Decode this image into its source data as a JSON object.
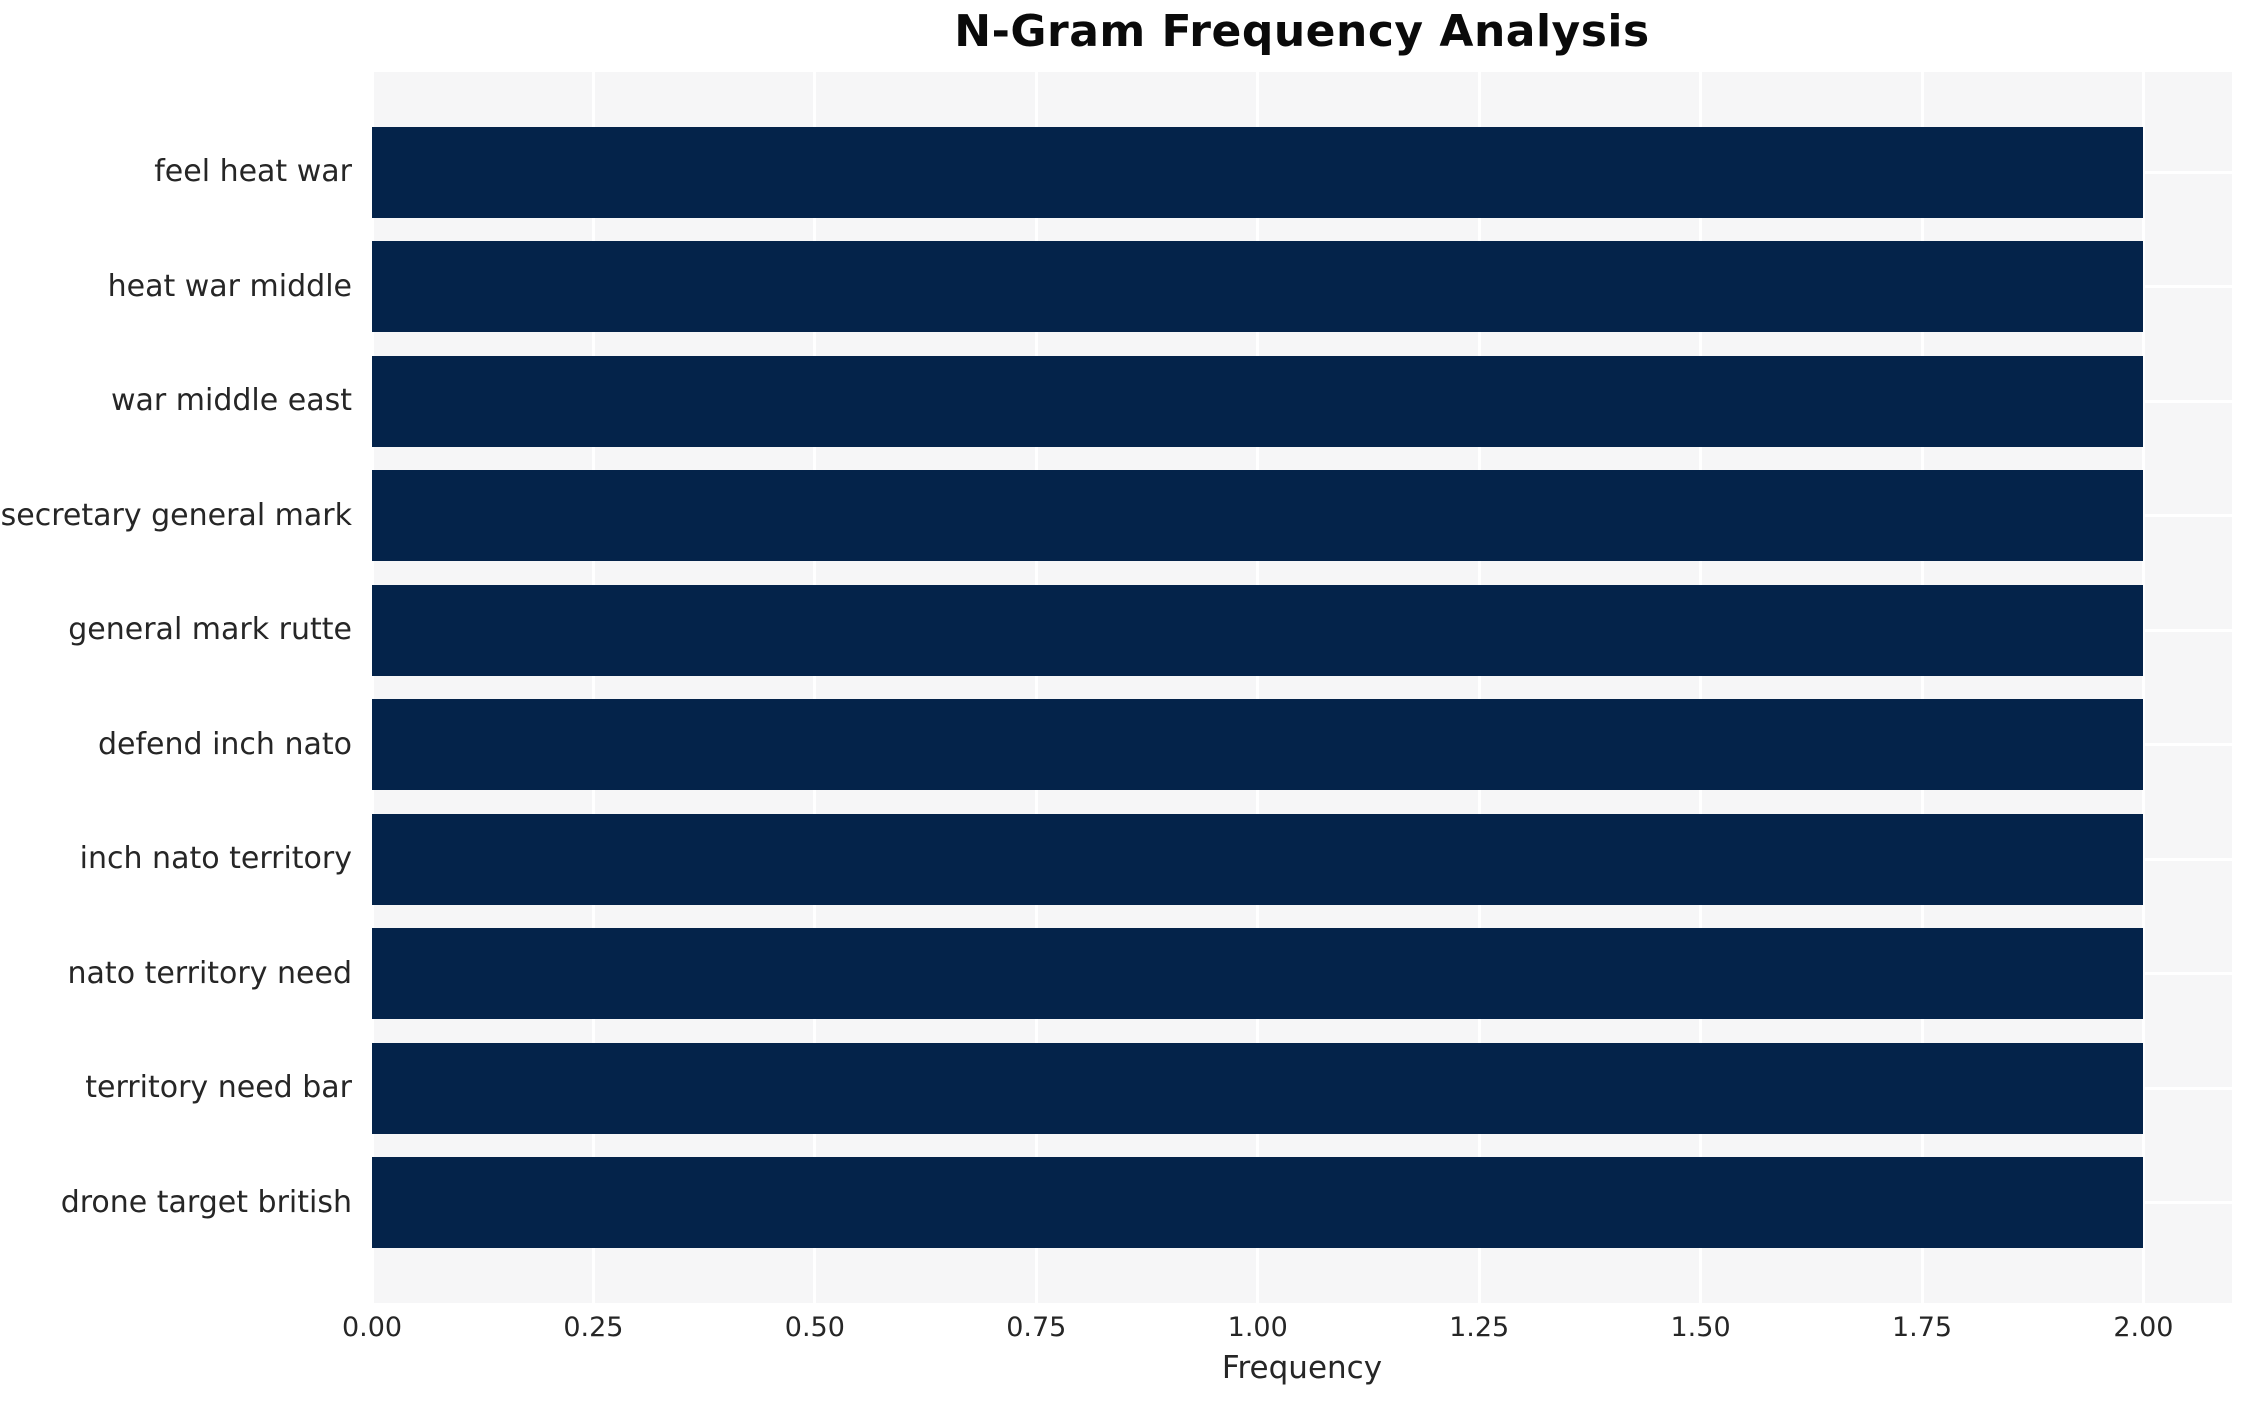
{
  "title": "N-Gram Frequency Analysis",
  "xlabel": "Frequency",
  "colors": {
    "bar": "#04234a",
    "plot_bg": "#f6f6f7",
    "grid": "#ffffff",
    "text": "#262626",
    "title": "#0a0a0a"
  },
  "x_tick_labels": [
    "0.00",
    "0.25",
    "0.50",
    "0.75",
    "1.00",
    "1.25",
    "1.50",
    "1.75",
    "2.00"
  ],
  "chart_data": {
    "type": "bar",
    "orientation": "horizontal",
    "title": "N-Gram Frequency Analysis",
    "xlabel": "Frequency",
    "ylabel": "",
    "categories": [
      "feel heat war",
      "heat war middle",
      "war middle east",
      "secretary general mark",
      "general mark rutte",
      "defend inch nato",
      "inch nato territory",
      "nato territory need",
      "territory need bar",
      "drone target british"
    ],
    "values": [
      2,
      2,
      2,
      2,
      2,
      2,
      2,
      2,
      2,
      2
    ],
    "xlim": [
      0,
      2.1
    ],
    "x_tick_step": 0.25,
    "grid": true,
    "legend": false,
    "bar_color": "#04234a"
  }
}
